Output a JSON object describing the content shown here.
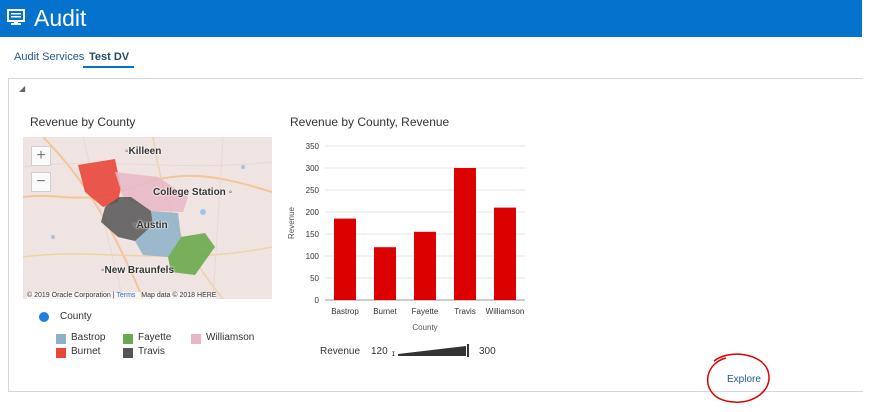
{
  "header": {
    "title": "Audit",
    "icon": "monitor-icon",
    "color": "#0572ce"
  },
  "tabs": [
    {
      "label": "Audit Services"
    },
    {
      "label": "Test DV",
      "active": true
    }
  ],
  "map": {
    "title": "Revenue by County",
    "cities": [
      "Killeen",
      "College Station",
      "Austin",
      "New Braunfels"
    ],
    "attribution": "© 2019 Oracle Corporation",
    "terms": "Terms",
    "map_data": "Map data © 2018 HERE",
    "zoom_in": "+",
    "zoom_out": "−"
  },
  "legend": {
    "title": "County",
    "items": [
      {
        "label": "Bastrop",
        "color": "#8cb0c8"
      },
      {
        "label": "Fayette",
        "color": "#6aa84f"
      },
      {
        "label": "Williamson",
        "color": "#e8b7c5"
      },
      {
        "label": "Burnet",
        "color": "#e8473c"
      },
      {
        "label": "Travis",
        "color": "#555555"
      }
    ]
  },
  "chart_data": {
    "type": "bar",
    "title": "Revenue by County, Revenue",
    "categories": [
      "Bastrop",
      "Burnet",
      "Fayette",
      "Travis",
      "Williamson"
    ],
    "values": [
      185,
      120,
      155,
      300,
      210
    ],
    "xlabel": "County",
    "ylabel": "Revenue",
    "ylim": [
      0,
      350
    ],
    "yticks": [
      0,
      50,
      100,
      150,
      200,
      250,
      300,
      350
    ],
    "color": "#dd0000",
    "grid": true
  },
  "range": {
    "label": "Revenue",
    "min": "120",
    "max": "300"
  },
  "explore": "Explore"
}
